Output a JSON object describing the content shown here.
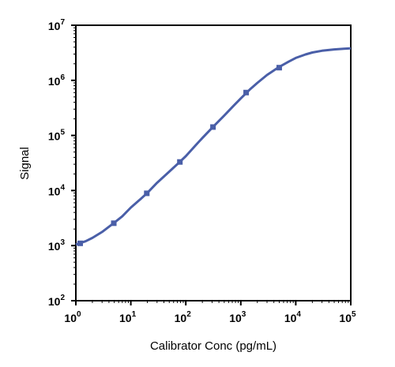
{
  "chart_data": {
    "type": "scatter",
    "title": "",
    "xlabel": "Calibrator Conc (pg/mL)",
    "ylabel": "Signal",
    "x_scale": "log",
    "y_scale": "log",
    "xlim": [
      1,
      100000
    ],
    "ylim": [
      100,
      10000000
    ],
    "x_tick_exponents": [
      "0",
      "1",
      "2",
      "3",
      "4",
      "5"
    ],
    "y_tick_exponents": [
      "2",
      "3",
      "4",
      "5",
      "6",
      "7"
    ],
    "tick_base": "10",
    "grid": false,
    "series": [
      {
        "points": [
          {
            "x": 1.2,
            "y": 1100
          },
          {
            "x": 4.9,
            "y": 2550
          },
          {
            "x": 19.5,
            "y": 8900
          },
          {
            "x": 78,
            "y": 33000
          },
          {
            "x": 312,
            "y": 142000
          },
          {
            "x": 1250,
            "y": 600000
          },
          {
            "x": 5000,
            "y": 1700000
          }
        ],
        "curve": [
          {
            "x": 1,
            "y": 1050
          },
          {
            "x": 1.5,
            "y": 1200
          },
          {
            "x": 2,
            "y": 1380
          },
          {
            "x": 3,
            "y": 1770
          },
          {
            "x": 5,
            "y": 2600
          },
          {
            "x": 7,
            "y": 3400
          },
          {
            "x": 10,
            "y": 4900
          },
          {
            "x": 15,
            "y": 7000
          },
          {
            "x": 20,
            "y": 9100
          },
          {
            "x": 30,
            "y": 13800
          },
          {
            "x": 50,
            "y": 22000
          },
          {
            "x": 75,
            "y": 32000
          },
          {
            "x": 100,
            "y": 42000
          },
          {
            "x": 150,
            "y": 66000
          },
          {
            "x": 200,
            "y": 90000
          },
          {
            "x": 300,
            "y": 137000
          },
          {
            "x": 500,
            "y": 230000
          },
          {
            "x": 750,
            "y": 350000
          },
          {
            "x": 1000,
            "y": 470000
          },
          {
            "x": 1500,
            "y": 700000
          },
          {
            "x": 2000,
            "y": 900000
          },
          {
            "x": 3000,
            "y": 1250000
          },
          {
            "x": 5000,
            "y": 1750000
          },
          {
            "x": 7500,
            "y": 2200000
          },
          {
            "x": 10000,
            "y": 2550000
          },
          {
            "x": 15000,
            "y": 2950000
          },
          {
            "x": 20000,
            "y": 3200000
          },
          {
            "x": 30000,
            "y": 3450000
          },
          {
            "x": 50000,
            "y": 3650000
          },
          {
            "x": 75000,
            "y": 3750000
          },
          {
            "x": 100000,
            "y": 3800000
          }
        ]
      }
    ],
    "colors": {
      "series": "#4a5fa8",
      "axis": "#000000"
    }
  }
}
